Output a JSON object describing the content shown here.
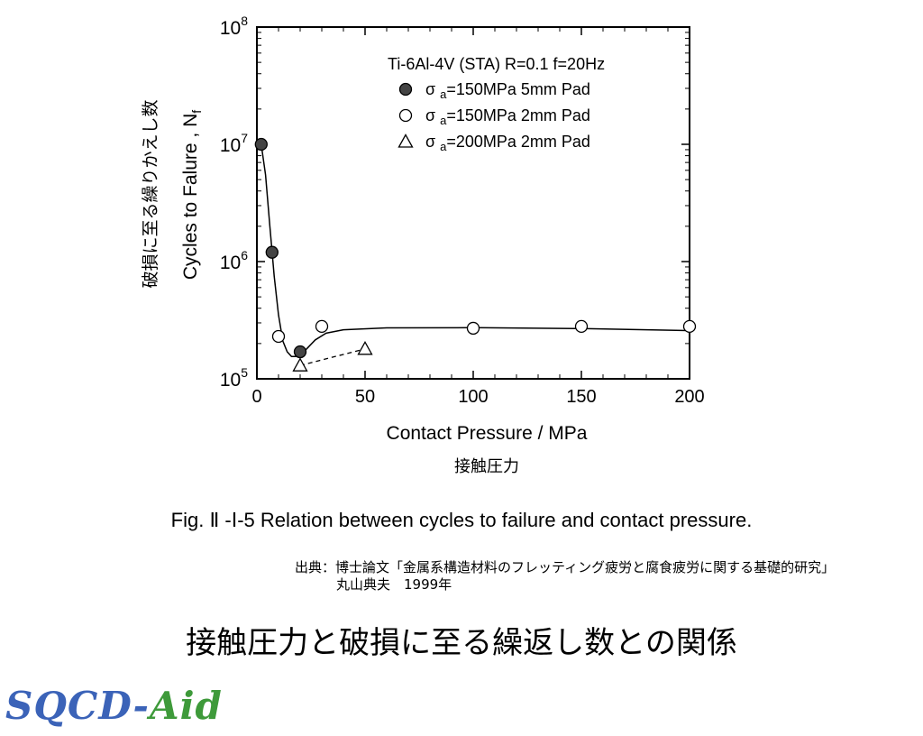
{
  "chart_data": {
    "type": "scatter",
    "annotation": "Ti-6Al-4V (STA) R=0.1  f=20Hz",
    "ylabel_en": "Cycles to Falure , N",
    "ylabel_en_sub": "f",
    "ylabel_jp": "破損に至る繰りかえし数",
    "xlabel_en": "Contact Pressure / MPa",
    "xlabel_jp": "接触圧力",
    "xlim": [
      0,
      200
    ],
    "ylim": [
      100000,
      100000000
    ],
    "y_scale": "log",
    "x_ticks": [
      "0",
      "50",
      "100",
      "150",
      "200"
    ],
    "y_ticks": [
      {
        "base": "10",
        "exp": "5",
        "value": 100000
      },
      {
        "base": "10",
        "exp": "6",
        "value": 1000000
      },
      {
        "base": "10",
        "exp": "7",
        "value": 10000000
      },
      {
        "base": "10",
        "exp": "8",
        "value": 100000000
      }
    ],
    "legend_position": "top-right",
    "series": [
      {
        "name_prefix": "σ",
        "name_sub": "a",
        "name_rest": "=150MPa  5mm Pad",
        "marker": "filled-circle",
        "x": [
          2,
          7,
          20
        ],
        "y": [
          10000000,
          1200000,
          170000
        ]
      },
      {
        "name_prefix": "σ",
        "name_sub": "a",
        "name_rest": "=150MPa 2mm Pad",
        "marker": "open-circle",
        "x": [
          10,
          30,
          100,
          150,
          200
        ],
        "y": [
          230000,
          280000,
          270000,
          280000,
          280000
        ]
      },
      {
        "name_prefix": "σ",
        "name_sub": "a",
        "name_rest": "=200MPa 2mm Pad",
        "marker": "open-triangle",
        "x": [
          20,
          50
        ],
        "y": [
          130000,
          180000
        ]
      }
    ],
    "fit_curve": {
      "x": [
        2,
        4,
        6,
        8,
        10,
        12,
        14,
        16,
        18,
        20,
        23,
        27,
        32,
        40,
        60,
        100,
        150,
        200
      ],
      "y": [
        10000000,
        5500000,
        2000000,
        750000,
        350000,
        210000,
        170000,
        155000,
        155000,
        160000,
        180000,
        215000,
        245000,
        262000,
        272000,
        273000,
        268000,
        258000
      ]
    }
  },
  "caption": "Fig. Ⅱ -Ⅰ-5 Relation  between  cycles  to failure  and  contact  pressure.",
  "source_line1": "出典：博士論文「金属系構造材料のフレッティング疲労と腐食疲労に関する基礎的研究」",
  "source_line2": "丸山典夫　1999年",
  "main_title": "接触圧力と破損に至る繰返し数との関係",
  "logo_sqcd": "SQCD-",
  "logo_aid": "Aid"
}
